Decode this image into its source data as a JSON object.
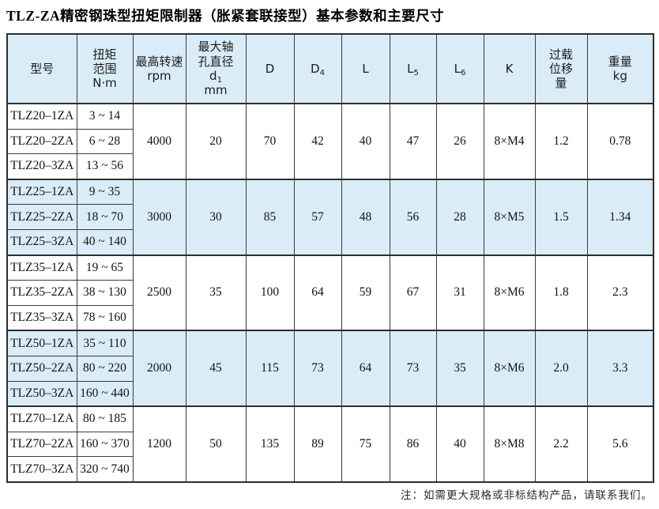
{
  "title": "TLZ-ZA精密钢珠型扭矩限制器（胀紧套联接型）基本参数和主要尺寸",
  "note": "注：如需更大规格或非标结构产品，请联系我们。",
  "colors": {
    "band_blue": "#d9ecf7",
    "border_dark": "#2e2e2e",
    "grid_line": "#3c3c3c",
    "text": "#141414"
  },
  "table": {
    "columns": [
      {
        "name": "model",
        "lines": [
          "型号"
        ]
      },
      {
        "name": "torque-range",
        "lines": [
          "扭矩",
          "范围",
          "N·m"
        ]
      },
      {
        "name": "max-speed",
        "lines": [
          "最高转速",
          "rpm"
        ]
      },
      {
        "name": "max-bore",
        "lines": [
          "最大轴",
          "孔直径",
          "d|1",
          "mm"
        ]
      },
      {
        "name": "D",
        "lines": [
          "D"
        ]
      },
      {
        "name": "D4",
        "lines": [
          "D|4"
        ]
      },
      {
        "name": "L",
        "lines": [
          "L"
        ]
      },
      {
        "name": "L5",
        "lines": [
          "L|5"
        ]
      },
      {
        "name": "L6",
        "lines": [
          "L|6"
        ]
      },
      {
        "name": "K",
        "lines": [
          "K"
        ]
      },
      {
        "name": "overload-displacement",
        "lines": [
          "过载",
          "位移",
          "量"
        ]
      },
      {
        "name": "weight",
        "lines": [
          "重量",
          "kg"
        ]
      }
    ],
    "groups": [
      {
        "band": false,
        "rows": [
          {
            "model": "TLZ20–1ZA",
            "torque": "3 ~ 14"
          },
          {
            "model": "TLZ20–2ZA",
            "torque": "6 ~ 28"
          },
          {
            "model": "TLZ20–3ZA",
            "torque": "13 ~ 56"
          }
        ],
        "shared_values": [
          "4000",
          "20",
          "70",
          "42",
          "40",
          "47",
          "26",
          "8×M4",
          "1.2",
          "0.78"
        ]
      },
      {
        "band": true,
        "rows": [
          {
            "model": "TLZ25–1ZA",
            "torque": "9 ~ 35"
          },
          {
            "model": "TLZ25–2ZA",
            "torque": "18 ~ 70"
          },
          {
            "model": "TLZ25–3ZA",
            "torque": "40 ~ 140"
          }
        ],
        "shared_values": [
          "3000",
          "30",
          "85",
          "57",
          "48",
          "56",
          "28",
          "8×M5",
          "1.5",
          "1.34"
        ]
      },
      {
        "band": false,
        "rows": [
          {
            "model": "TLZ35–1ZA",
            "torque": "19 ~ 65"
          },
          {
            "model": "TLZ35–2ZA",
            "torque": "38 ~ 130"
          },
          {
            "model": "TLZ35–3ZA",
            "torque": "78 ~ 160"
          }
        ],
        "shared_values": [
          "2500",
          "35",
          "100",
          "64",
          "59",
          "67",
          "31",
          "8×M6",
          "1.8",
          "2.3"
        ]
      },
      {
        "band": true,
        "rows": [
          {
            "model": "TLZ50–1ZA",
            "torque": "35 ~ 110"
          },
          {
            "model": "TLZ50–2ZA",
            "torque": "80 ~ 220"
          },
          {
            "model": "TLZ50–3ZA",
            "torque": "160 ~ 440"
          }
        ],
        "shared_values": [
          "2000",
          "45",
          "115",
          "73",
          "64",
          "73",
          "35",
          "8×M6",
          "2.0",
          "3.3"
        ]
      },
      {
        "band": false,
        "rows": [
          {
            "model": "TLZ70–1ZA",
            "torque": "80 ~ 185"
          },
          {
            "model": "TLZ70–2ZA",
            "torque": "160 ~ 370"
          },
          {
            "model": "TLZ70–3ZA",
            "torque": "320 ~ 740"
          }
        ],
        "shared_values": [
          "1200",
          "50",
          "135",
          "89",
          "75",
          "86",
          "40",
          "8×M8",
          "2.2",
          "5.6"
        ]
      }
    ]
  }
}
